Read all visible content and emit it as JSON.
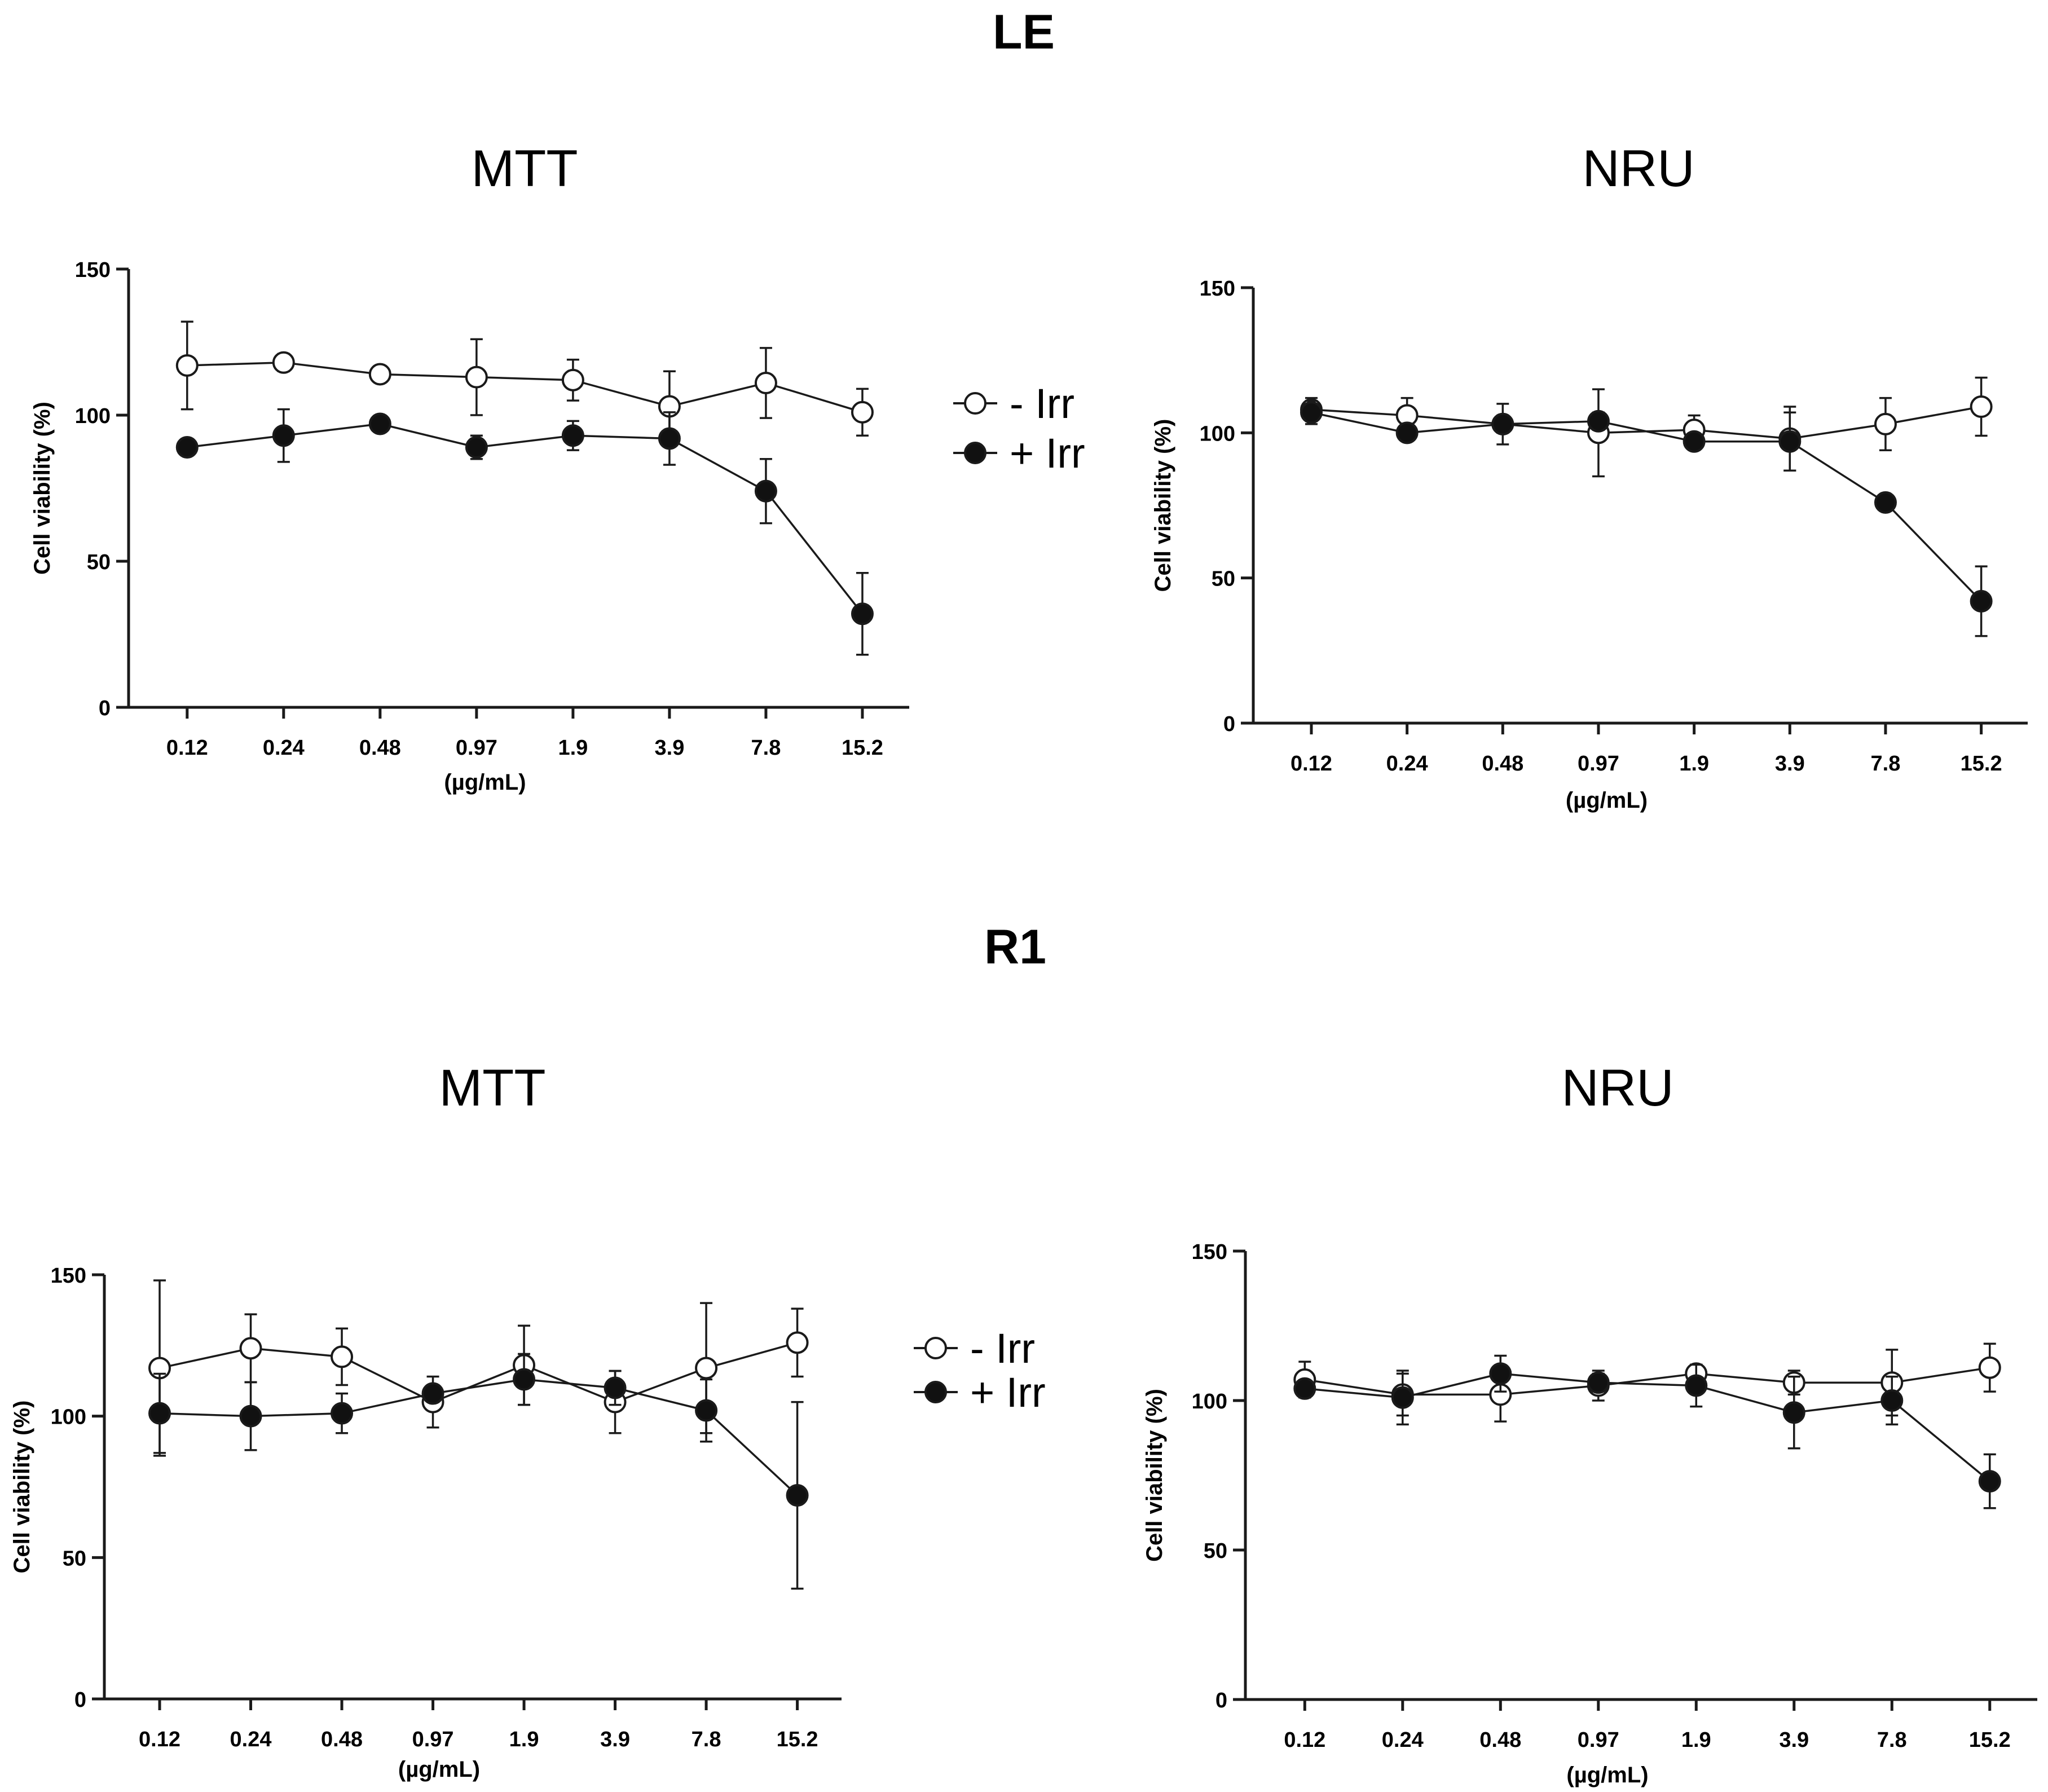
{
  "sections": [
    {
      "title": "LE"
    },
    {
      "title": "R1"
    }
  ],
  "legend": {
    "items": [
      {
        "label": "- Irr",
        "marker": "open"
      },
      {
        "label": "+ Irr",
        "marker": "filled"
      }
    ]
  },
  "chart_data": [
    {
      "type": "line",
      "section": "LE",
      "title": "MTT",
      "xlabel": "(µg/mL)",
      "ylabel": "Cell viability (%)",
      "categories": [
        "0.12",
        "0.24",
        "0.48",
        "0.97",
        "1.9",
        "3.9",
        "7.8",
        "15.2"
      ],
      "yticks": [
        0,
        50,
        100,
        150
      ],
      "ylim": [
        0,
        150
      ],
      "series": [
        {
          "name": "- Irr",
          "marker": "open",
          "values": [
            117,
            118,
            114,
            113,
            112,
            103,
            111,
            101
          ],
          "errors": [
            15,
            3,
            2,
            13,
            7,
            12,
            12,
            8
          ]
        },
        {
          "name": "+ Irr",
          "marker": "filled",
          "values": [
            89,
            93,
            97,
            89,
            93,
            92,
            74,
            32
          ],
          "errors": [
            2,
            9,
            1,
            4,
            5,
            9,
            11,
            14
          ]
        }
      ]
    },
    {
      "type": "line",
      "section": "LE",
      "title": "NRU",
      "xlabel": "(µg/mL)",
      "ylabel": "Cell viability (%)",
      "categories": [
        "0.12",
        "0.24",
        "0.48",
        "0.97",
        "1.9",
        "3.9",
        "7.8",
        "15.2"
      ],
      "yticks": [
        0,
        50,
        100,
        150
      ],
      "ylim": [
        0,
        150
      ],
      "series": [
        {
          "name": "- Irr",
          "marker": "open",
          "values": [
            108,
            106,
            103,
            100,
            101,
            98,
            103,
            109
          ],
          "errors": [
            4,
            6,
            7,
            15,
            5,
            11,
            9,
            10
          ]
        },
        {
          "name": "+ Irr",
          "marker": "filled",
          "values": [
            107,
            100,
            103,
            104,
            97,
            97,
            76,
            42
          ],
          "errors": [
            4,
            2,
            3,
            3,
            2,
            10,
            1,
            12
          ]
        }
      ]
    },
    {
      "type": "line",
      "section": "R1",
      "title": "MTT",
      "xlabel": "(µg/mL)",
      "ylabel": "Cell viability (%)",
      "categories": [
        "0.12",
        "0.24",
        "0.48",
        "0.97",
        "1.9",
        "3.9",
        "7.8",
        "15.2"
      ],
      "yticks": [
        0,
        50,
        100,
        150
      ],
      "ylim": [
        0,
        150
      ],
      "series": [
        {
          "name": "- Irr",
          "marker": "open",
          "values": [
            117,
            124,
            121,
            105,
            118,
            105,
            117,
            126
          ],
          "errors": [
            31,
            12,
            10,
            9,
            14,
            11,
            23,
            12
          ]
        },
        {
          "name": "+ Irr",
          "marker": "filled",
          "values": [
            101,
            100,
            101,
            108,
            113,
            110,
            102,
            72
          ],
          "errors": [
            14,
            12,
            7,
            3,
            9,
            6,
            11,
            33
          ]
        }
      ]
    },
    {
      "type": "line",
      "section": "R1",
      "title": "NRU",
      "xlabel": "(µg/mL)",
      "ylabel": "Cell viability (%)",
      "categories": [
        "0.12",
        "0.24",
        "0.48",
        "0.97",
        "1.9",
        "3.9",
        "7.8",
        "15.2"
      ],
      "yticks": [
        0,
        50,
        100,
        150
      ],
      "ylim": [
        0,
        150
      ],
      "series": [
        {
          "name": "- Irr",
          "marker": "open",
          "values": [
            107,
            102,
            102,
            105,
            109,
            106,
            106,
            111
          ],
          "errors": [
            6,
            7,
            9,
            5,
            3,
            4,
            11,
            8
          ]
        },
        {
          "name": "+ Irr",
          "marker": "filled",
          "values": [
            104,
            101,
            109,
            106,
            105,
            96,
            100,
            73
          ],
          "errors": [
            2,
            9,
            6,
            3,
            7,
            12,
            8,
            9
          ]
        }
      ]
    }
  ]
}
